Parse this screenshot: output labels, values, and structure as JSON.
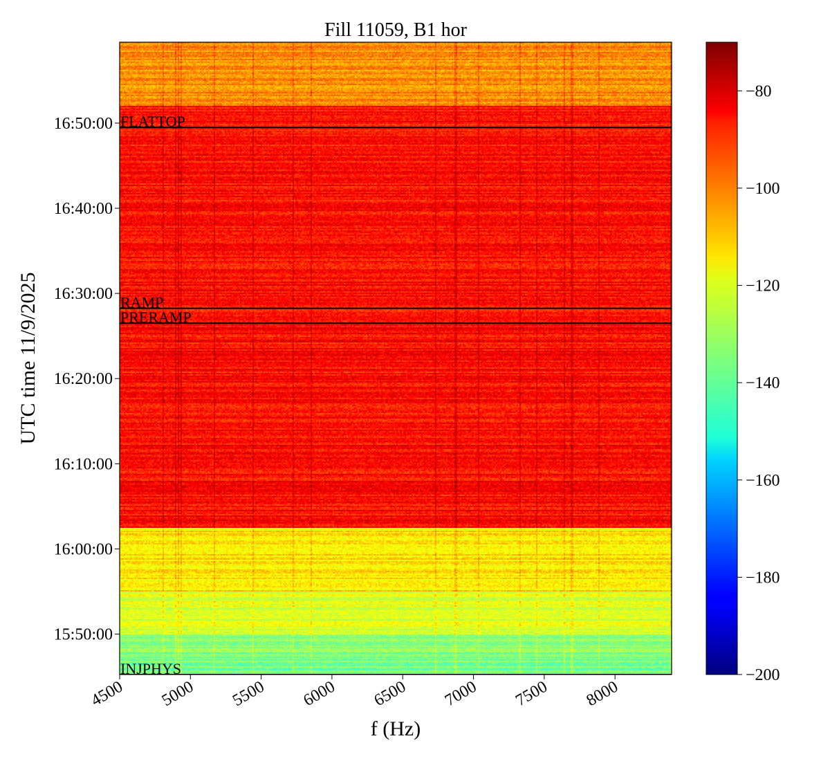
{
  "chart_data": {
    "type": "heatmap",
    "title": "Fill 11059, B1 hor",
    "xlabel": "f (Hz)",
    "ylabel": "UTC time 11/9/2025",
    "xlim": [
      4500,
      8400
    ],
    "ylim": [
      "15:45:15",
      "16:59:30"
    ],
    "x_ticks": [
      "4500",
      "5000",
      "5500",
      "6000",
      "6500",
      "7000",
      "7500",
      "8000"
    ],
    "y_ticks": [
      "15:50:00",
      "16:00:00",
      "16:10:00",
      "16:20:00",
      "16:30:00",
      "16:40:00",
      "16:50:00"
    ],
    "colorbar": {
      "colormap": "jet",
      "range": [
        -200,
        -70
      ],
      "ticks": [
        "−80",
        "−100",
        "−120",
        "−140",
        "−160",
        "−180",
        "−200"
      ]
    },
    "events": [
      {
        "label": "INJPHYS",
        "time": "15:45:15"
      },
      {
        "label": "PRERAMP",
        "time": "16:26:30"
      },
      {
        "label": "RAMP",
        "time": "16:28:15"
      },
      {
        "label": "FLATTOP",
        "time": "16:49:30"
      }
    ],
    "approx_levels": [
      {
        "from": "15:45:15",
        "to": "15:50:00",
        "level_dB": -135
      },
      {
        "from": "15:50:00",
        "to": "15:55:00",
        "level_dB": -123
      },
      {
        "from": "15:55:00",
        "to": "16:02:30",
        "level_dB": -115
      },
      {
        "from": "16:02:30",
        "to": "16:52:00",
        "level_dB": -88
      },
      {
        "from": "16:52:00",
        "to": "16:59:30",
        "level_dB": -105
      }
    ],
    "grid": false,
    "colors": {
      "event_line": "#000000"
    }
  }
}
